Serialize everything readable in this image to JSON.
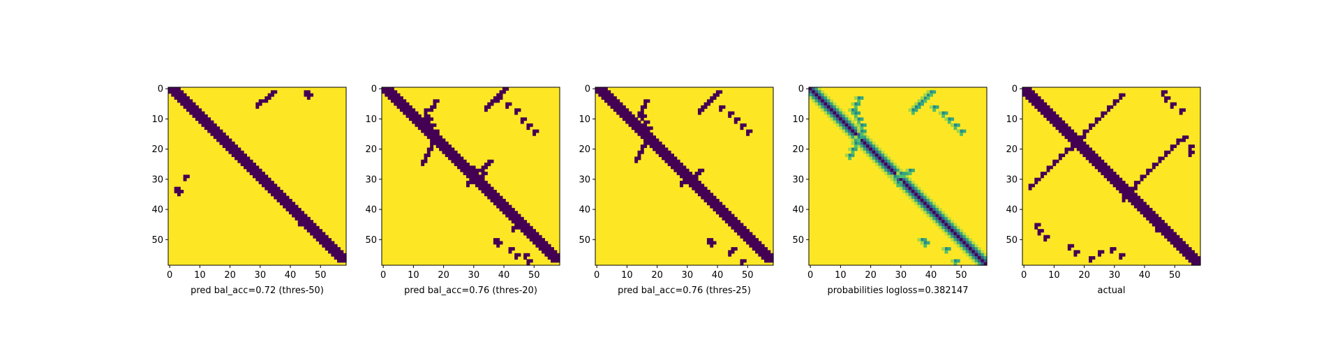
{
  "colors": {
    "background": "#440154",
    "foreground": "#fde725",
    "frame": "#000000"
  },
  "chart_data": [
    {
      "type": "heatmap",
      "xlabel": "pred bal_acc=0.72 (thres-50)",
      "size": 59,
      "xticks": [
        0,
        10,
        20,
        30,
        40,
        50
      ],
      "yticks": [
        0,
        10,
        20,
        30,
        40,
        50
      ],
      "xlim": [
        0,
        58
      ],
      "ylim": [
        58,
        0
      ],
      "colormap": "viridis",
      "value_range": [
        0,
        1
      ],
      "features": [
        {
          "kind": "diagonal",
          "offset": -3,
          "width": 4
        },
        {
          "kind": "blob",
          "cells": [
            [
              29,
              5
            ],
            [
              30,
              4
            ],
            [
              32,
              3
            ],
            [
              33,
              2
            ],
            [
              34,
              1
            ]
          ]
        },
        {
          "kind": "blob",
          "cells": [
            [
              45,
              1
            ],
            [
              46,
              2
            ]
          ]
        },
        {
          "kind": "blob",
          "cells": [
            [
              3,
              34
            ],
            [
              2,
              33
            ],
            [
              5,
              29
            ]
          ]
        },
        {
          "kind": "blob",
          "cells": [
            [
              45,
              43
            ],
            [
              43,
              44
            ]
          ]
        }
      ]
    },
    {
      "type": "heatmap",
      "xlabel": "pred bal_acc=0.76 (thres-20)",
      "size": 59,
      "xticks": [
        0,
        10,
        20,
        30,
        40,
        50
      ],
      "yticks": [
        0,
        10,
        20,
        30,
        40,
        50
      ],
      "xlim": [
        0,
        58
      ],
      "ylim": [
        58,
        0
      ],
      "colormap": "viridis",
      "value_range": [
        0,
        1
      ],
      "features": [
        {
          "kind": "diagonal",
          "offset": -2,
          "width": 5
        },
        {
          "kind": "curve",
          "cells": [
            [
              13,
              24
            ],
            [
              14,
              22
            ],
            [
              15,
              20
            ],
            [
              16,
              18
            ],
            [
              17,
              16
            ],
            [
              17,
              14
            ],
            [
              16,
              12
            ],
            [
              15,
              10
            ],
            [
              14,
              9
            ],
            [
              14,
              7
            ],
            [
              16,
              6
            ],
            [
              17,
              4
            ]
          ]
        },
        {
          "kind": "curve",
          "cells": [
            [
              37,
              3
            ],
            [
              38,
              2
            ],
            [
              39,
              1
            ],
            [
              40,
              0
            ],
            [
              36,
              4
            ],
            [
              35,
              5
            ],
            [
              34,
              6
            ]
          ]
        },
        {
          "kind": "curve",
          "cells": [
            [
              29,
              26
            ],
            [
              31,
              27
            ],
            [
              33,
              26
            ],
            [
              34,
              25
            ],
            [
              35,
              24
            ],
            [
              33,
              28
            ],
            [
              30,
              29
            ],
            [
              28,
              31
            ]
          ]
        },
        {
          "kind": "curve",
          "cells": [
            [
              38,
              3
            ],
            [
              41,
              5
            ],
            [
              44,
              7
            ],
            [
              46,
              10
            ],
            [
              48,
              12
            ],
            [
              50,
              14
            ]
          ]
        },
        {
          "kind": "blob",
          "cells": [
            [
              37,
              50
            ],
            [
              38,
              51
            ],
            [
              42,
              53
            ],
            [
              44,
              55
            ],
            [
              43,
              46
            ],
            [
              47,
              55
            ],
            [
              48,
              57
            ]
          ]
        }
      ]
    },
    {
      "type": "heatmap",
      "xlabel": "pred bal_acc=0.76 (thres-25)",
      "size": 59,
      "xticks": [
        0,
        10,
        20,
        30,
        40,
        50
      ],
      "yticks": [
        0,
        10,
        20,
        30,
        40,
        50
      ],
      "xlim": [
        0,
        58
      ],
      "ylim": [
        58,
        0
      ],
      "colormap": "viridis",
      "value_range": [
        0,
        1
      ],
      "features": [
        {
          "kind": "diagonal",
          "offset": -2,
          "width": 5
        },
        {
          "kind": "curve",
          "cells": [
            [
              13,
              23
            ],
            [
              14,
              21
            ],
            [
              15,
              19
            ],
            [
              16,
              17
            ],
            [
              17,
              15
            ],
            [
              17,
              13
            ],
            [
              16,
              11
            ],
            [
              15,
              9
            ],
            [
              14,
              8
            ],
            [
              15,
              6
            ],
            [
              16,
              4
            ]
          ]
        },
        {
          "kind": "curve",
          "cells": [
            [
              37,
              4
            ],
            [
              38,
              3
            ],
            [
              39,
              2
            ],
            [
              40,
              1
            ],
            [
              36,
              5
            ],
            [
              35,
              6
            ],
            [
              34,
              7
            ]
          ]
        },
        {
          "kind": "curve",
          "cells": [
            [
              29,
              30
            ],
            [
              31,
              29
            ],
            [
              33,
              28
            ],
            [
              34,
              27
            ],
            [
              30,
              28
            ],
            [
              28,
              31
            ],
            [
              31,
              31
            ]
          ]
        },
        {
          "kind": "curve",
          "cells": [
            [
              41,
              6
            ],
            [
              44,
              8
            ],
            [
              46,
              10
            ],
            [
              48,
              12
            ],
            [
              50,
              14
            ]
          ]
        },
        {
          "kind": "blob",
          "cells": [
            [
              37,
              50
            ],
            [
              38,
              51
            ],
            [
              45,
              53
            ],
            [
              44,
              54
            ],
            [
              48,
              57
            ]
          ]
        }
      ]
    },
    {
      "type": "heatmap",
      "xlabel": "probabilities logloss=0.382147",
      "size": 59,
      "xticks": [
        0,
        10,
        20,
        30,
        40,
        50
      ],
      "yticks": [
        0,
        10,
        20,
        30,
        40,
        50
      ],
      "xlim": [
        0,
        58
      ],
      "ylim": [
        58,
        0
      ],
      "colormap": "viridis",
      "value_range": [
        0,
        1
      ],
      "features": [
        {
          "kind": "diagonal-soft",
          "offset": 0,
          "width": 6
        },
        {
          "kind": "soft-curve",
          "cells": [
            [
              13,
              22
            ],
            [
              14,
              20
            ],
            [
              15,
              18
            ],
            [
              16,
              16
            ],
            [
              17,
              14
            ],
            [
              17,
              12
            ],
            [
              16,
              10
            ],
            [
              15,
              8
            ],
            [
              14,
              7
            ],
            [
              15,
              5
            ],
            [
              16,
              3
            ]
          ]
        },
        {
          "kind": "soft-curve",
          "cells": [
            [
              37,
              4
            ],
            [
              38,
              3
            ],
            [
              39,
              2
            ],
            [
              40,
              1
            ],
            [
              36,
              5
            ],
            [
              35,
              6
            ],
            [
              34,
              7
            ]
          ]
        },
        {
          "kind": "soft-curve",
          "cells": [
            [
              28,
              29
            ],
            [
              31,
              28
            ],
            [
              33,
              27
            ],
            [
              30,
              28
            ],
            [
              29,
              31
            ]
          ]
        },
        {
          "kind": "soft-curve",
          "cells": [
            [
              41,
              6
            ],
            [
              44,
              8
            ],
            [
              46,
              10
            ],
            [
              48,
              12
            ],
            [
              50,
              14
            ]
          ]
        },
        {
          "kind": "soft-curve",
          "cells": [
            [
              37,
              50
            ],
            [
              38,
              51
            ],
            [
              45,
              53
            ],
            [
              48,
              57
            ]
          ]
        }
      ]
    },
    {
      "type": "heatmap",
      "xlabel": "actual",
      "size": 59,
      "xticks": [
        0,
        10,
        20,
        30,
        40,
        50
      ],
      "yticks": [
        0,
        10,
        20,
        30,
        40,
        50
      ],
      "xlim": [
        0,
        58
      ],
      "ylim": [
        58,
        0
      ],
      "colormap": "viridis",
      "value_range": [
        0,
        1
      ],
      "features": [
        {
          "kind": "diagonal",
          "offset": 0,
          "width": 5
        },
        {
          "kind": "anti-diagonal",
          "cells": [
            [
              2,
              32
            ],
            [
              4,
              30
            ],
            [
              6,
              28
            ],
            [
              8,
              26
            ],
            [
              10,
              24
            ],
            [
              12,
              22
            ],
            [
              14,
              20
            ],
            [
              16,
              18
            ],
            [
              18,
              16
            ],
            [
              20,
              14
            ],
            [
              22,
              12
            ],
            [
              24,
              10
            ],
            [
              26,
              8
            ],
            [
              28,
              6
            ],
            [
              30,
              4
            ],
            [
              32,
              2
            ]
          ]
        },
        {
          "kind": "anti-diagonal",
          "cells": [
            [
              35,
              33
            ],
            [
              37,
              31
            ],
            [
              39,
              29
            ],
            [
              41,
              27
            ],
            [
              43,
              25
            ],
            [
              45,
              23
            ],
            [
              47,
              21
            ],
            [
              49,
              19
            ],
            [
              51,
              17
            ]
          ]
        },
        {
          "kind": "blob",
          "cells": [
            [
              16,
              17
            ],
            [
              17,
              18
            ],
            [
              18,
              17
            ],
            [
              17,
              16
            ],
            [
              16,
              19
            ],
            [
              19,
              16
            ]
          ]
        },
        {
          "kind": "blob",
          "cells": [
            [
              34,
              35
            ],
            [
              35,
              34
            ],
            [
              33,
              36
            ],
            [
              36,
              33
            ]
          ]
        },
        {
          "kind": "blob",
          "cells": [
            [
              45,
              44
            ],
            [
              46,
              45
            ],
            [
              44,
              46
            ],
            [
              45,
              45
            ]
          ]
        },
        {
          "kind": "blob",
          "cells": [
            [
              46,
              1
            ],
            [
              47,
              3
            ],
            [
              49,
              5
            ],
            [
              52,
              7
            ]
          ]
        },
        {
          "kind": "blob",
          "cells": [
            [
              53,
              16
            ],
            [
              55,
              19
            ],
            [
              55,
              21
            ]
          ]
        },
        {
          "kind": "blob",
          "cells": [
            [
              4,
              45
            ],
            [
              5,
              47
            ],
            [
              7,
              49
            ]
          ]
        },
        {
          "kind": "blob",
          "cells": [
            [
              15,
              52
            ],
            [
              17,
              54
            ],
            [
              22,
              56
            ]
          ]
        },
        {
          "kind": "blob",
          "cells": [
            [
              25,
              54
            ],
            [
              29,
              53
            ],
            [
              32,
              55
            ]
          ]
        }
      ]
    }
  ]
}
